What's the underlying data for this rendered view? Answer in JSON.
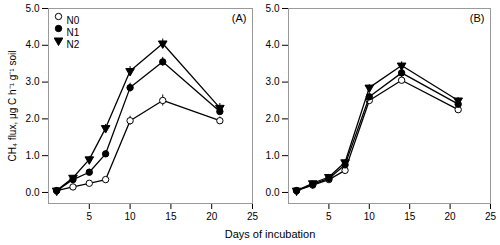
{
  "chart_data": [
    {
      "type": "line",
      "ylabel": "CH₄ flux, μg C h⁻¹ g⁻¹ soil",
      "xlabel": "Days of incubation",
      "annotations": [
        "(A)"
      ],
      "x": [
        1,
        3,
        5,
        7,
        10,
        14,
        21
      ],
      "series": [
        {
          "name": "N0",
          "color": "black",
          "marker": "circle-open",
          "values": [
            0.05,
            0.15,
            0.25,
            0.35,
            1.95,
            2.5,
            1.95
          ],
          "errors": [
            0.03,
            0.05,
            0.05,
            0.05,
            0.12,
            0.15,
            0.1
          ]
        },
        {
          "name": "N1",
          "color": "black",
          "marker": "circle",
          "values": [
            0.05,
            0.35,
            0.55,
            1.05,
            2.85,
            3.55,
            2.2
          ],
          "errors": [
            0.03,
            0.05,
            0.08,
            0.08,
            0.12,
            0.12,
            0.1
          ]
        },
        {
          "name": "N2",
          "color": "black",
          "marker": "triangle-down",
          "values": [
            0.05,
            0.4,
            0.9,
            1.75,
            3.3,
            4.05,
            2.3
          ],
          "errors": [
            0.03,
            0.06,
            0.08,
            0.1,
            0.12,
            0.12,
            0.12
          ]
        }
      ],
      "xlim": [
        0,
        25
      ],
      "xticks": [
        5,
        10,
        15,
        20,
        25
      ],
      "ylim": [
        -0.3,
        5.0
      ],
      "yticks": [
        0,
        1,
        2,
        3,
        4,
        5
      ],
      "legend": "upper left"
    },
    {
      "type": "line",
      "annotations": [
        "(B)"
      ],
      "x": [
        1,
        3,
        5,
        7,
        10,
        14,
        21
      ],
      "series": [
        {
          "name": "N0",
          "color": "black",
          "marker": "circle-open",
          "values": [
            0.05,
            0.2,
            0.35,
            0.6,
            2.5,
            3.05,
            2.25
          ],
          "errors": [
            0.03,
            0.04,
            0.05,
            0.06,
            0.08,
            0.1,
            0.1
          ]
        },
        {
          "name": "N1",
          "color": "black",
          "marker": "circle",
          "values": [
            0.05,
            0.22,
            0.38,
            0.75,
            2.6,
            3.25,
            2.4
          ],
          "errors": [
            0.03,
            0.04,
            0.05,
            0.06,
            0.08,
            0.1,
            0.08
          ]
        },
        {
          "name": "N2",
          "color": "black",
          "marker": "triangle-down",
          "values": [
            0.05,
            0.25,
            0.42,
            0.82,
            2.85,
            3.45,
            2.5
          ],
          "errors": [
            0.03,
            0.04,
            0.05,
            0.07,
            0.08,
            0.1,
            0.08
          ]
        }
      ],
      "xlim": [
        0,
        25
      ],
      "xticks": [
        5,
        10,
        15,
        20,
        25
      ],
      "ylim": [
        -0.3,
        5.0
      ],
      "yticks": [
        0,
        1,
        2,
        3,
        4,
        5
      ]
    }
  ]
}
